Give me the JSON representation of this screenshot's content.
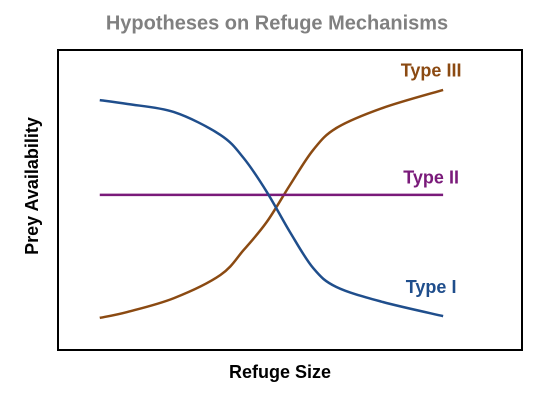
{
  "chart_data": {
    "type": "line",
    "title": "Hypotheses on Refuge Mechanisms",
    "x_label": "Refuge Size",
    "y_label": "Prey Availability",
    "x": [
      0.9,
      1.5,
      2.5,
      3.5,
      4.0,
      4.5,
      5.0,
      5.5,
      6.0,
      7.0,
      8.3
    ],
    "xlim": [
      0,
      10
    ],
    "ylim": [
      0,
      10
    ],
    "series": [
      {
        "name": "Type III",
        "color": "#8b4a12",
        "values": [
          1.07,
          1.27,
          1.73,
          2.5,
          3.33,
          4.27,
          5.5,
          6.67,
          7.4,
          8.07,
          8.67
        ]
      },
      {
        "name": "Type II",
        "color": "#7a1a7a",
        "values": [
          5.17,
          5.17,
          5.17,
          5.17,
          5.17,
          5.17,
          5.17,
          5.17,
          5.17,
          5.17,
          5.17
        ]
      },
      {
        "name": "Type I",
        "color": "#1f4e8c",
        "values": [
          8.33,
          8.2,
          7.93,
          7.17,
          6.4,
          5.27,
          3.93,
          2.73,
          2.1,
          1.6,
          1.13
        ]
      }
    ]
  }
}
